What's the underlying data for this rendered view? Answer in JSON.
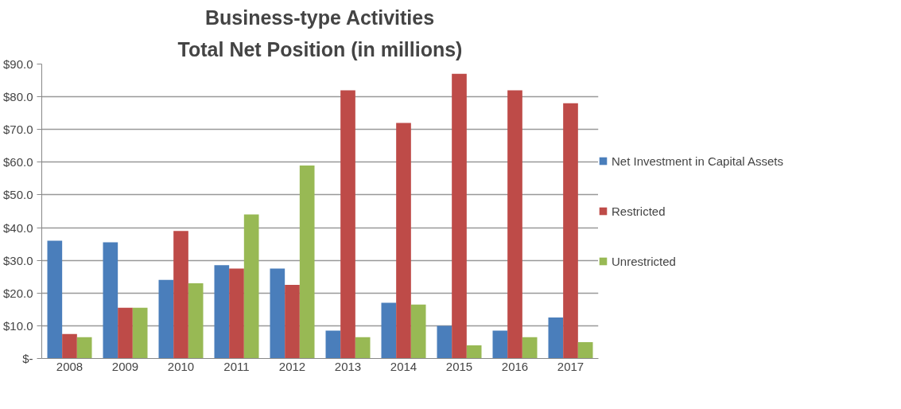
{
  "chart_data": {
    "type": "bar",
    "title": "Business-type Activities",
    "subtitle": "Total Net Position (in millions)",
    "categories": [
      "2008",
      "2009",
      "2010",
      "2011",
      "2012",
      "2013",
      "2014",
      "2015",
      "2016",
      "2017"
    ],
    "series": [
      {
        "name": "Net Investment in Capital Assets",
        "color": "#4a7ebb",
        "values": [
          36,
          35.5,
          24,
          28.5,
          27.5,
          8.5,
          17,
          10,
          8.5,
          12.5
        ]
      },
      {
        "name": "Restricted",
        "color": "#be4b48",
        "values": [
          7.5,
          15.5,
          39,
          27.5,
          22.5,
          82,
          72,
          87,
          82,
          78
        ]
      },
      {
        "name": "Unrestricted",
        "color": "#98b954",
        "values": [
          6.5,
          15.5,
          23,
          44,
          59,
          6.5,
          16.5,
          4,
          6.5,
          5
        ]
      }
    ],
    "ylim": [
      0,
      90
    ],
    "yticks": [
      {
        "value": 0,
        "label": "$-"
      },
      {
        "value": 10,
        "label": "$10.0"
      },
      {
        "value": 20,
        "label": "$20.0"
      },
      {
        "value": 30,
        "label": "$30.0"
      },
      {
        "value": 40,
        "label": "$40.0"
      },
      {
        "value": 50,
        "label": "$50.0"
      },
      {
        "value": 60,
        "label": "$60.0"
      },
      {
        "value": 70,
        "label": "$70.0"
      },
      {
        "value": 80,
        "label": "$80.0"
      },
      {
        "value": 90,
        "label": "$90.0"
      }
    ],
    "grid": "y",
    "legend": "right"
  }
}
